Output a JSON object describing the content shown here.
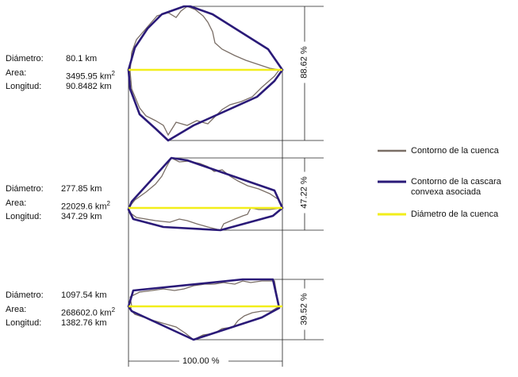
{
  "basins": [
    {
      "diameter_label": "Diámetro:",
      "diameter_value": "80.1 km",
      "area_label": "Area:",
      "area_value": "3495.95 km",
      "area_unit_sup": "2",
      "length_label": "Longitud:",
      "length_value": "90.8482 km",
      "height_pct": "88.62  %"
    },
    {
      "diameter_label": "Diámetro:",
      "diameter_value": "277.85 km",
      "area_label": "Area:",
      "area_value": "22029.6 km",
      "area_unit_sup": "2",
      "length_label": "Longitud:",
      "length_value": "347.29 km",
      "height_pct": "47.22  %"
    },
    {
      "diameter_label": "Diámetro:",
      "diameter_value": "1097.54 km",
      "area_label": "Area:",
      "area_value": "268602.0 km",
      "area_unit_sup": "2",
      "length_label": "Longitud:",
      "length_value": "1382.76 km",
      "height_pct": "39.52  %"
    }
  ],
  "width_pct": "100.00  %",
  "legend": {
    "items": [
      {
        "label": "Contorno de la cuenca",
        "color": "#7a6e66"
      },
      {
        "label": "Contorno de la cascara\nconvexa asociada",
        "color": "#2a1a78"
      },
      {
        "label": "Diámetro de la cuenca",
        "color": "#f2ee1a"
      }
    ]
  }
}
